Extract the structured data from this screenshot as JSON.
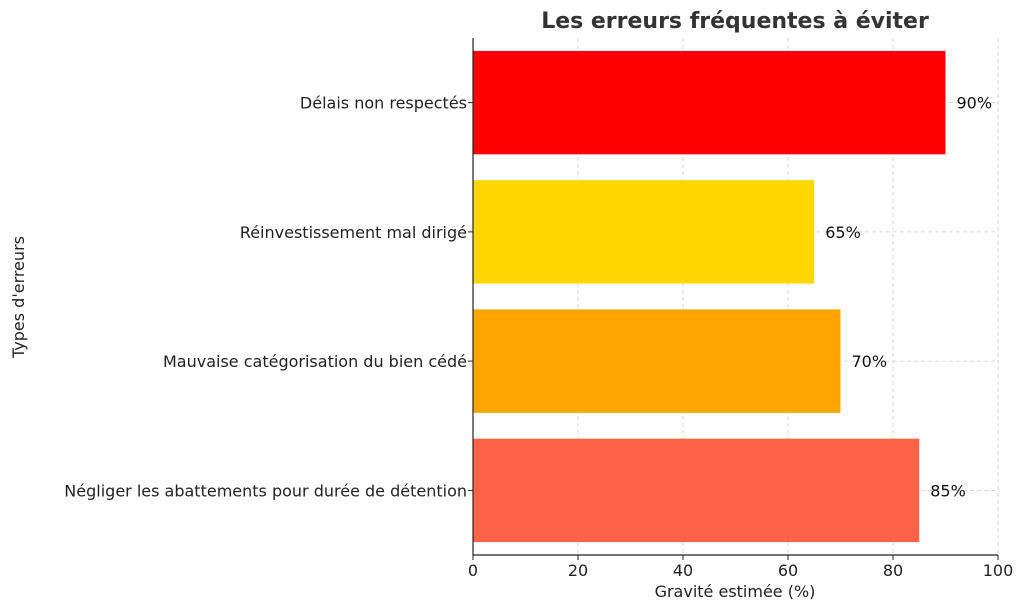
{
  "chart_data": {
    "type": "bar",
    "orientation": "horizontal",
    "title": "Les erreurs fréquentes à éviter",
    "xlabel": "Gravité estimée (%)",
    "ylabel": "Types d'erreurs",
    "xlim": [
      0,
      100
    ],
    "xticks": [
      "0",
      "20",
      "40",
      "60",
      "80",
      "100"
    ],
    "grid": true,
    "categories": [
      "Délais non respectés",
      "Réinvestissement mal dirigé",
      "Mauvaise catégorisation du bien cédé",
      "Négliger les abattements pour durée de détention"
    ],
    "values": [
      90,
      65,
      70,
      85
    ],
    "value_labels": [
      "90%",
      "65%",
      "70%",
      "85%"
    ],
    "colors": [
      "#ff0000",
      "#ffd700",
      "#ffa500",
      "#ff6347"
    ]
  }
}
